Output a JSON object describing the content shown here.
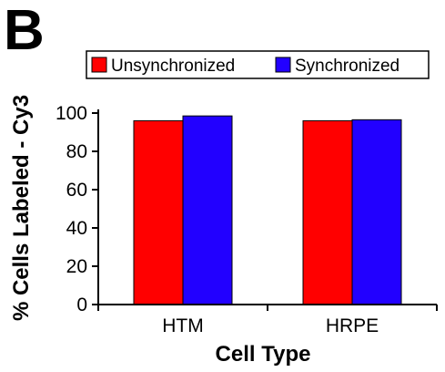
{
  "panel_label": "B",
  "chart_data": {
    "type": "bar",
    "categories": [
      "HTM",
      "HRPE"
    ],
    "series": [
      {
        "name": "Unsynchronized",
        "values": [
          96,
          96
        ],
        "color": "#ff0000"
      },
      {
        "name": "Synchronized",
        "values": [
          98.5,
          96.5
        ],
        "color": "#2200ff"
      }
    ],
    "xlabel": "Cell Type",
    "ylabel": "% Cells Labeled - Cy3",
    "ylim": [
      0,
      100
    ],
    "yticks": [
      0,
      20,
      40,
      60,
      80,
      100
    ],
    "grid": false,
    "legend_placement": "top"
  }
}
